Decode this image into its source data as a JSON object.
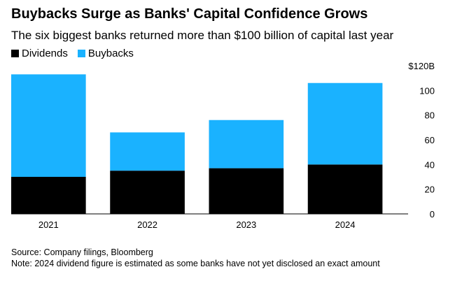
{
  "chart_data": {
    "type": "bar",
    "stacked": true,
    "title": "Buybacks Surge as Banks' Capital Confidence Grows",
    "subtitle": "The six biggest banks returned more than $100 billion of capital last year",
    "categories": [
      "2021",
      "2022",
      "2023",
      "2024"
    ],
    "series": [
      {
        "name": "Dividends",
        "color": "#000000",
        "values": [
          30,
          35,
          37,
          40
        ]
      },
      {
        "name": "Buybacks",
        "color": "#1ab2ff",
        "values": [
          83,
          31,
          39,
          66
        ]
      }
    ],
    "ylim": [
      0,
      120
    ],
    "yticks": [
      0,
      20,
      40,
      60,
      80,
      100,
      120
    ],
    "ytick_labels": [
      "0",
      "20",
      "40",
      "60",
      "80",
      "100",
      "$120B"
    ],
    "xlabel": "",
    "ylabel": "",
    "legend_position": "top-left",
    "grid": false
  },
  "footer": {
    "source": "Source: Company filings, Bloomberg",
    "note": "Note: 2024 dividend figure is estimated as some banks have not yet disclosed an exact amount"
  }
}
